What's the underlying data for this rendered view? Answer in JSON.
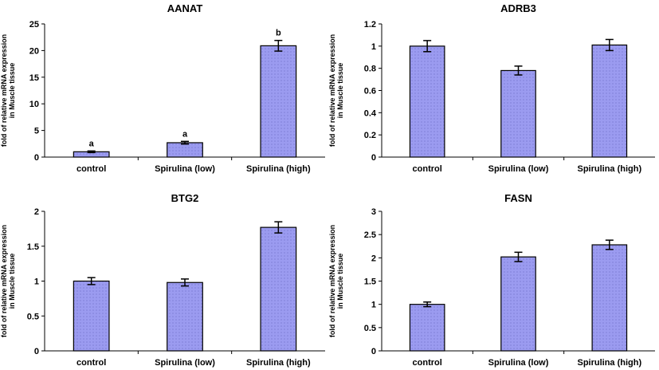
{
  "chart_data": [
    {
      "type": "bar",
      "title": "AANAT",
      "categories": [
        "control",
        "Spirulina (low)",
        "Spirulina (high)"
      ],
      "values": [
        1.0,
        2.7,
        20.9
      ],
      "errors": [
        0.15,
        0.25,
        1.0
      ],
      "annotations": [
        "a",
        "a",
        "b"
      ],
      "ylabel_lines": [
        "fold of relative mRNA expression",
        "in Muscle tissue"
      ],
      "ylim": [
        0,
        25
      ],
      "yticks": [
        "0",
        "5",
        "10",
        "15",
        "20",
        "25"
      ],
      "bar_color": "#9b9bf0"
    },
    {
      "type": "bar",
      "title": "ADRB3",
      "categories": [
        "control",
        "Spirulina (low)",
        "Spirulina (high)"
      ],
      "values": [
        1.0,
        0.78,
        1.01
      ],
      "errors": [
        0.05,
        0.04,
        0.05
      ],
      "ylabel_lines": [
        "fold of relative mRNA expression",
        "in Muscle tissue"
      ],
      "ylim": [
        0,
        1.2
      ],
      "yticks": [
        "0",
        "0.2",
        "0.4",
        "0.6",
        "0.8",
        "1",
        "1.2"
      ],
      "bar_color": "#9b9bf0"
    },
    {
      "type": "bar",
      "title": "BTG2",
      "categories": [
        "control",
        "Spirulina (low)",
        "Spirulina (high)"
      ],
      "values": [
        1.0,
        0.98,
        1.77
      ],
      "errors": [
        0.05,
        0.05,
        0.08
      ],
      "ylabel_lines": [
        "fold of relative mRNA expression",
        "in Muscle tissue"
      ],
      "ylim": [
        0,
        2
      ],
      "yticks": [
        "0",
        "0.5",
        "1",
        "1.5",
        "2"
      ],
      "bar_color": "#9b9bf0"
    },
    {
      "type": "bar",
      "title": "FASN",
      "categories": [
        "control",
        "Spirulina (low)",
        "Spirulina (high)"
      ],
      "values": [
        1.0,
        2.02,
        2.28
      ],
      "errors": [
        0.05,
        0.1,
        0.1
      ],
      "ylabel_lines": [
        "fold of relative mRNA expression",
        "in Muscle tissue"
      ],
      "ylim": [
        0,
        3
      ],
      "yticks": [
        "0",
        "0.5",
        "1",
        "1.5",
        "2",
        "2.5",
        "3"
      ],
      "bar_color": "#9b9bf0"
    }
  ]
}
